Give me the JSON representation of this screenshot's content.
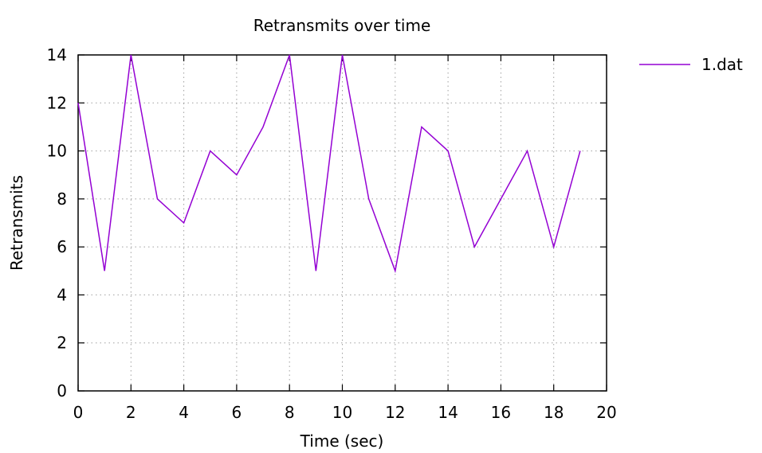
{
  "chart_data": {
    "type": "line",
    "title": "Retransmits over time",
    "xlabel": "Time (sec)",
    "ylabel": "Retransmits",
    "xlim": [
      0,
      20
    ],
    "ylim": [
      0,
      14
    ],
    "xticks": [
      "0",
      "2",
      "4",
      "6",
      "8",
      "10",
      "12",
      "14",
      "16",
      "18",
      "20"
    ],
    "yticks": [
      "0",
      "2",
      "4",
      "6",
      "8",
      "10",
      "12",
      "14"
    ],
    "grid": true,
    "legend_position": "top-right outside",
    "series": [
      {
        "name": "1.dat",
        "color": "#9400d3",
        "x": [
          0,
          1,
          2,
          3,
          4,
          5,
          6,
          7,
          8,
          9,
          10,
          11,
          12,
          13,
          14,
          15,
          16,
          17,
          18,
          19
        ],
        "y": [
          12,
          5,
          14,
          8,
          7,
          10,
          9,
          11,
          14,
          5,
          14,
          8,
          5,
          11,
          10,
          6,
          8,
          10,
          6,
          10
        ]
      }
    ]
  }
}
